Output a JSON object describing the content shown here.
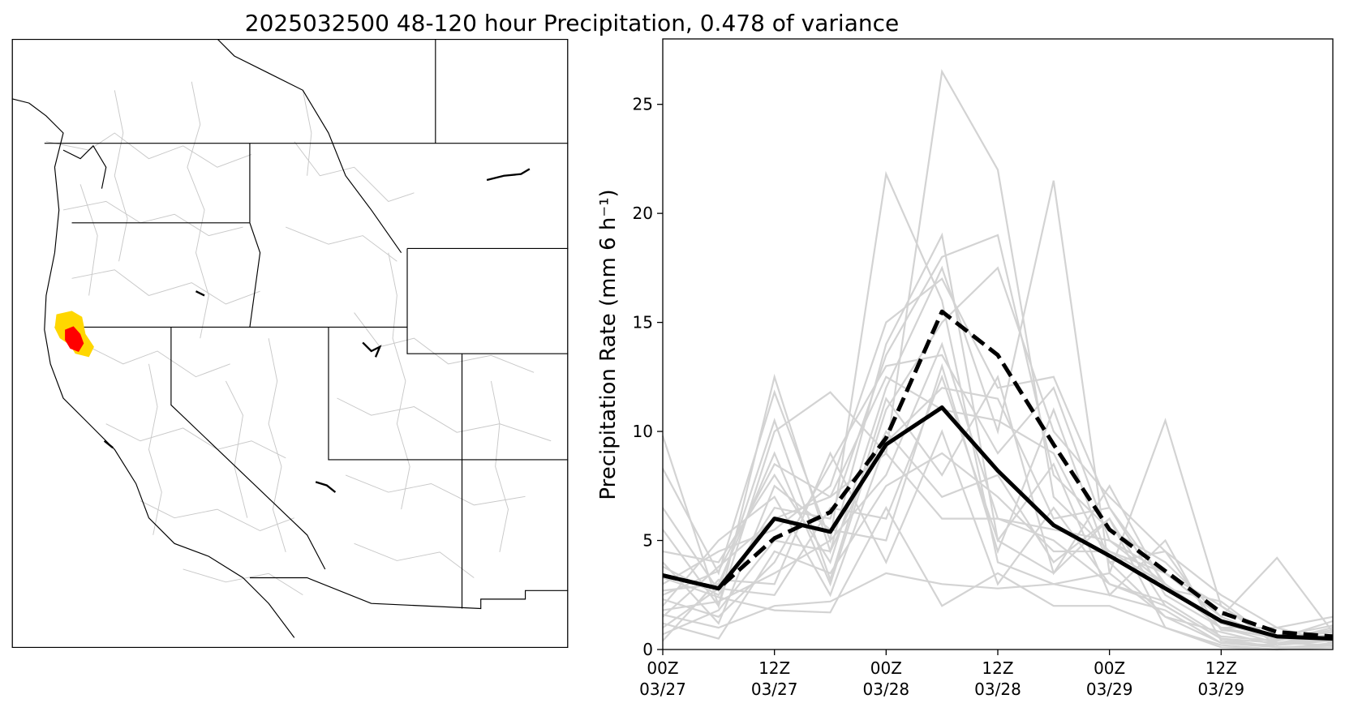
{
  "figure_title": "2025032500 48-120 hour Precipitation, 0.478 of variance",
  "map": {
    "highlight_colors": {
      "outer": "#ffd700",
      "inner": "#ff0000"
    },
    "border_color": "#000000",
    "basin_color": "#c8c8c8"
  },
  "chart_data": {
    "type": "line",
    "ylabel": "Precipitation Rate (mm 6 h⁻¹)",
    "ylim": [
      0,
      28
    ],
    "yticks": [
      0,
      5,
      10,
      15,
      20,
      25
    ],
    "x": [
      0,
      6,
      12,
      18,
      24,
      30,
      36,
      42,
      48,
      54,
      60,
      66,
      72
    ],
    "xlim": [
      0,
      72
    ],
    "xticks": [
      {
        "x": 0,
        "line1": "00Z",
        "line2": "03/27"
      },
      {
        "x": 12,
        "line1": "12Z",
        "line2": "03/27"
      },
      {
        "x": 24,
        "line1": "00Z",
        "line2": "03/28"
      },
      {
        "x": 36,
        "line1": "12Z",
        "line2": "03/28"
      },
      {
        "x": 48,
        "line1": "00Z",
        "line2": "03/29"
      },
      {
        "x": 60,
        "line1": "12Z",
        "line2": "03/29"
      }
    ],
    "grid": false,
    "legend": "none",
    "bold_series": [
      {
        "style": "solid",
        "color": "#000000",
        "values": [
          3.4,
          2.8,
          6.0,
          5.4,
          9.4,
          11.1,
          8.2,
          5.7,
          4.3,
          2.8,
          1.3,
          0.6,
          0.5
        ]
      },
      {
        "style": "dashed",
        "color": "#000000",
        "values": [
          3.4,
          2.8,
          5.1,
          6.3,
          9.7,
          15.5,
          13.5,
          9.4,
          5.5,
          3.6,
          1.7,
          0.8,
          0.6
        ]
      }
    ],
    "ensemble_color": "#d3d3d3",
    "ensemble_members": [
      [
        9.8,
        2.0,
        12.5,
        4.5,
        14.0,
        19.0,
        5.0,
        3.5,
        6.0,
        2.0,
        0.5,
        0.3,
        0.7
      ],
      [
        8.3,
        3.5,
        11.8,
        5.0,
        21.8,
        16.0,
        4.0,
        3.0,
        3.5,
        1.5,
        0.3,
        0.2,
        0.5
      ],
      [
        5.5,
        2.0,
        10.0,
        11.8,
        9.0,
        26.5,
        22.0,
        7.0,
        4.5,
        3.0,
        1.0,
        0.5,
        0.4
      ],
      [
        4.5,
        4.0,
        8.0,
        4.0,
        12.0,
        17.5,
        10.0,
        21.5,
        3.5,
        10.5,
        2.0,
        0.4,
        1.0
      ],
      [
        3.8,
        2.5,
        6.5,
        6.0,
        13.5,
        18.0,
        19.0,
        8.0,
        5.5,
        4.0,
        1.5,
        4.2,
        0.8
      ],
      [
        3.0,
        4.5,
        5.5,
        7.5,
        15.0,
        17.0,
        12.0,
        12.5,
        6.5,
        3.0,
        1.2,
        0.5,
        1.3
      ],
      [
        2.7,
        3.0,
        9.0,
        3.0,
        11.0,
        15.0,
        17.5,
        10.0,
        7.0,
        4.5,
        2.5,
        1.0,
        1.5
      ],
      [
        2.3,
        1.5,
        4.0,
        8.5,
        13.0,
        13.5,
        9.0,
        12.0,
        5.0,
        3.5,
        2.0,
        0.2,
        0.6
      ],
      [
        2.0,
        5.0,
        7.0,
        2.5,
        9.5,
        12.0,
        11.5,
        6.0,
        6.5,
        2.5,
        1.0,
        1.0,
        0.3
      ],
      [
        1.8,
        2.2,
        3.5,
        5.0,
        8.0,
        14.0,
        6.0,
        5.0,
        3.0,
        2.0,
        0.5,
        0.1,
        0.2
      ],
      [
        1.5,
        3.8,
        6.0,
        7.0,
        12.5,
        11.0,
        10.5,
        9.0,
        4.0,
        1.5,
        0.8,
        0.2,
        0.4
      ],
      [
        1.2,
        0.5,
        4.5,
        3.5,
        7.5,
        9.0,
        7.0,
        4.5,
        4.5,
        3.5,
        1.5,
        0.5,
        0.8
      ],
      [
        1.0,
        2.8,
        2.5,
        6.5,
        6.0,
        12.5,
        5.0,
        8.5,
        2.5,
        5.0,
        0.4,
        0.1,
        0.1
      ],
      [
        0.7,
        1.8,
        5.0,
        4.5,
        10.0,
        7.0,
        8.0,
        4.0,
        6.0,
        1.0,
        0.2,
        0.0,
        0.3
      ],
      [
        0.4,
        3.2,
        3.0,
        9.0,
        4.0,
        10.0,
        3.0,
        6.5,
        3.0,
        2.2,
        0.6,
        0.4,
        0.9
      ],
      [
        6.5,
        2.7,
        10.5,
        3.2,
        11.5,
        8.0,
        12.5,
        3.5,
        7.5,
        2.8,
        2.2,
        0.3,
        0.2
      ],
      [
        4.0,
        1.2,
        7.5,
        5.5,
        5.0,
        13.0,
        4.5,
        11.0,
        4.0,
        4.5,
        0.9,
        0.6,
        1.1
      ],
      [
        3.3,
        2.4,
        1.8,
        1.7,
        6.5,
        2.0,
        3.5,
        2.0,
        2.0,
        1.0,
        0.1,
        0.0,
        0.1
      ],
      [
        2.5,
        3.6,
        8.5,
        7.0,
        9.0,
        6.0,
        6.0,
        5.5,
        5.0,
        3.0,
        1.0,
        0.3,
        0.5
      ],
      [
        1.6,
        1.0,
        2.0,
        2.2,
        3.5,
        3.0,
        2.8,
        3.0,
        2.5,
        1.8,
        0.3,
        0.1,
        0.2
      ]
    ]
  }
}
